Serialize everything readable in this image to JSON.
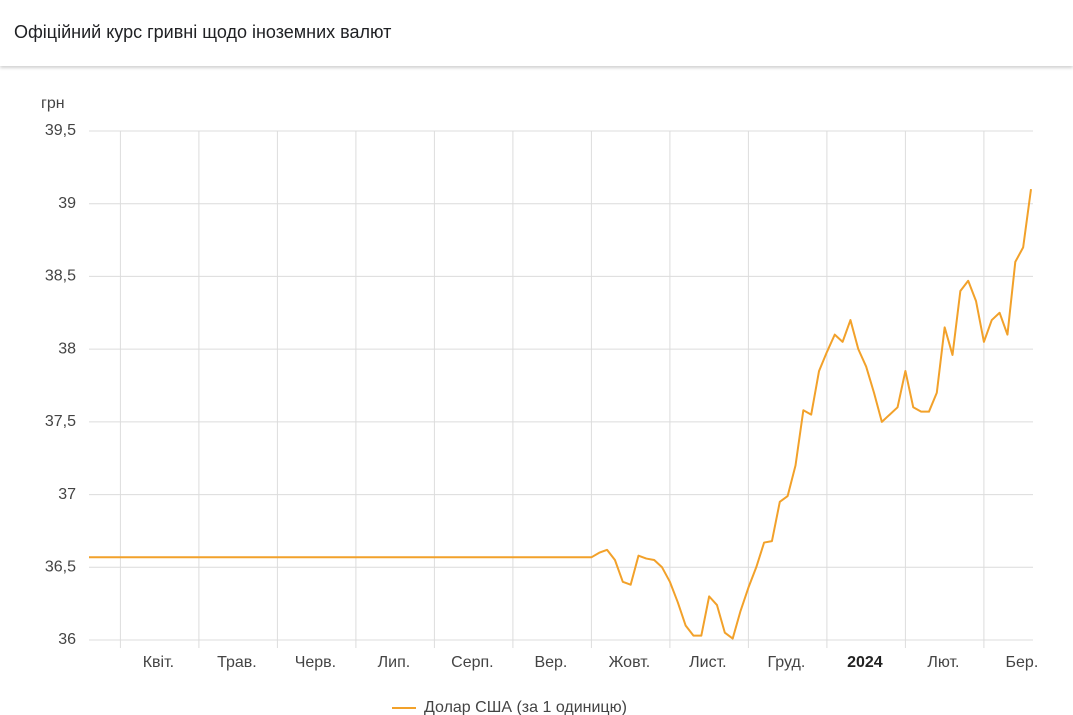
{
  "chart_data": {
    "type": "line",
    "title": "Офіційний курс гривні щодо іноземних валют",
    "y_label": "грн",
    "categories": [
      null,
      null,
      null,
      null,
      "Квіт.",
      null,
      null,
      null,
      null,
      null,
      null,
      null,
      null,
      null,
      "Трав.",
      null,
      null,
      null,
      null,
      null,
      null,
      null,
      null,
      null,
      "Черв.",
      null,
      null,
      null,
      null,
      null,
      null,
      null,
      null,
      null,
      "Лип.",
      null,
      null,
      null,
      null,
      null,
      null,
      null,
      null,
      null,
      "Серп.",
      null,
      null,
      null,
      null,
      null,
      null,
      null,
      null,
      null,
      "Вер.",
      null,
      null,
      null,
      null,
      null,
      null,
      null,
      null,
      null,
      "Жовт.",
      null,
      null,
      null,
      null,
      null,
      null,
      null,
      null,
      null,
      "Лист.",
      null,
      null,
      null,
      null,
      null,
      null,
      null,
      null,
      null,
      "Груд.",
      null,
      null,
      null,
      null,
      null,
      null,
      null,
      null,
      null,
      "2024",
      null,
      null,
      null,
      null,
      null,
      null,
      null,
      null,
      null,
      "Лют.",
      null,
      null,
      null,
      null,
      null,
      null,
      null,
      null,
      null,
      "Бер.",
      null,
      null,
      null,
      null,
      null,
      null
    ],
    "series": [
      {
        "name": "Долар США (за 1 одиницю)",
        "color": "#f2a12a",
        "values": [
          36.5686,
          36.5686,
          36.5686,
          36.5686,
          36.5686,
          36.5686,
          36.5686,
          36.5686,
          36.5686,
          36.5686,
          36.5686,
          36.5686,
          36.5686,
          36.5686,
          36.5686,
          36.5686,
          36.5686,
          36.5686,
          36.5686,
          36.5686,
          36.5686,
          36.5686,
          36.5686,
          36.5686,
          36.5686,
          36.5686,
          36.5686,
          36.5686,
          36.5686,
          36.5686,
          36.5686,
          36.5686,
          36.5686,
          36.5686,
          36.5686,
          36.5686,
          36.5686,
          36.5686,
          36.5686,
          36.5686,
          36.5686,
          36.5686,
          36.5686,
          36.5686,
          36.5686,
          36.5686,
          36.5686,
          36.5686,
          36.5686,
          36.5686,
          36.5686,
          36.5686,
          36.5686,
          36.5686,
          36.5686,
          36.5686,
          36.5686,
          36.5686,
          36.5686,
          36.5686,
          36.5686,
          36.5686,
          36.5686,
          36.5686,
          36.5686,
          36.6,
          36.62,
          36.55,
          36.4,
          36.38,
          36.58,
          36.56,
          36.55,
          36.5,
          36.4,
          36.26,
          36.1,
          36.03,
          36.03,
          36.3,
          36.24,
          36.05,
          36.01,
          36.2,
          36.36,
          36.5,
          36.67,
          36.68,
          36.95,
          36.99,
          37.2,
          37.58,
          37.55,
          37.85,
          37.98,
          38.1,
          38.05,
          38.2,
          38.0,
          37.88,
          37.7,
          37.5,
          37.55,
          37.6,
          37.85,
          37.6,
          37.57,
          37.57,
          37.7,
          38.15,
          37.96,
          38.4,
          38.47,
          38.33,
          38.05,
          38.2,
          38.25,
          38.1,
          38.6,
          38.7,
          39.1
        ]
      }
    ],
    "ylim": [
      36,
      39.5
    ],
    "yticks": [
      36,
      {
        "value": 36.5,
        "label": "36,5"
      },
      37,
      {
        "value": 37.5,
        "label": "37,5"
      },
      38,
      {
        "value": 38.5,
        "label": "38,5"
      },
      39,
      {
        "value": 39.5,
        "label": "39,5"
      }
    ],
    "grid": true,
    "legend": "bottom"
  }
}
